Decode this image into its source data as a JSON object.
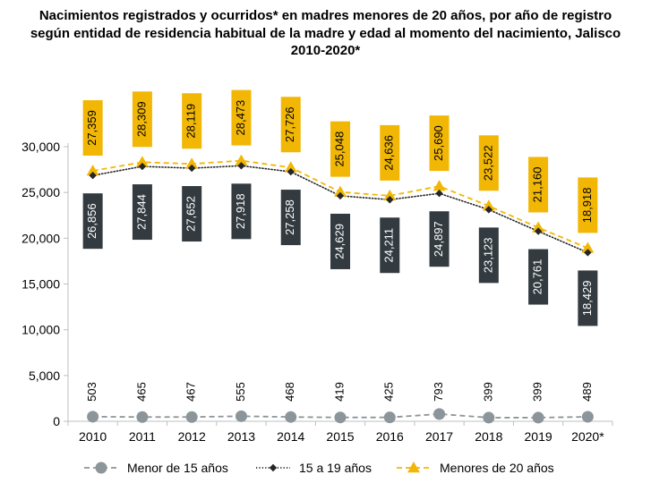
{
  "title": "Nacimientos registrados y ocurridos* en madres menores de 20 años, por año de registro según entidad de residencia habitual de la madre y edad al momento del nacimiento, Jalisco 2010-2020*",
  "chart_data": {
    "type": "line",
    "title": "Nacimientos registrados y ocurridos* en madres menores de 20 años, por año de registro según entidad de residencia habitual de la madre y edad al momento del nacimiento, Jalisco 2010-2020*",
    "categories": [
      "2010",
      "2011",
      "2012",
      "2013",
      "2014",
      "2015",
      "2016",
      "2017",
      "2018",
      "2019",
      "2020*"
    ],
    "y_ticks": [
      0,
      5000,
      10000,
      15000,
      20000,
      25000,
      30000
    ],
    "y_tick_labels": [
      "0",
      "5,000",
      "10,000",
      "15,000",
      "20,000",
      "25,000",
      "30,000"
    ],
    "ylim": [
      0,
      30000
    ],
    "xlabel": "",
    "ylabel": "",
    "grid": false,
    "legend_position": "bottom",
    "series": [
      {
        "name": "Menor de 15 años",
        "values": [
          503,
          465,
          467,
          555,
          468,
          419,
          425,
          793,
          399,
          399,
          489
        ],
        "labels": [
          "503",
          "465",
          "467",
          "555",
          "468",
          "419",
          "425",
          "793",
          "399",
          "399",
          "489"
        ],
        "color": "#8c9599",
        "line_style": "dashed",
        "marker": "circle"
      },
      {
        "name": "15 a 19 años",
        "values": [
          26856,
          27844,
          27652,
          27918,
          27258,
          24629,
          24211,
          24897,
          23123,
          20761,
          18429
        ],
        "labels": [
          "26,856",
          "27,844",
          "27,652",
          "27,918",
          "27,258",
          "24,629",
          "24,211",
          "24,897",
          "23,123",
          "20,761",
          "18,429"
        ],
        "color": "#262626",
        "label_box_color": "#333b40",
        "line_style": "dotted",
        "marker": "diamond"
      },
      {
        "name": "Menores de 20 años",
        "values": [
          27359,
          28309,
          28119,
          28473,
          27726,
          25048,
          24636,
          25690,
          23522,
          21160,
          18918
        ],
        "labels": [
          "27,359",
          "28,309",
          "28,119",
          "28,473",
          "27,726",
          "25,048",
          "24,636",
          "25,690",
          "23,522",
          "21,160",
          "18,918"
        ],
        "color": "#f2b705",
        "label_box_color": "#f2b705",
        "line_style": "dashed",
        "marker": "triangle"
      }
    ]
  }
}
